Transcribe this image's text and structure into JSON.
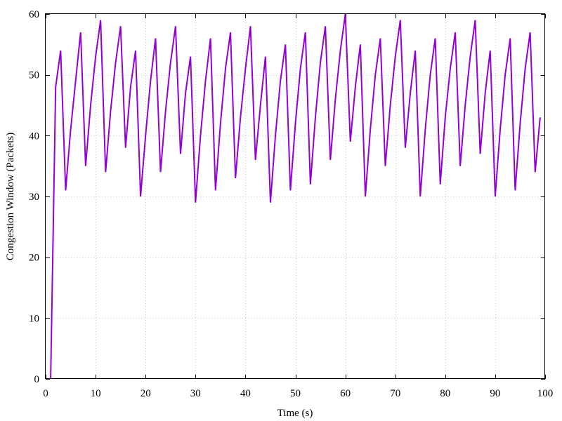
{
  "chart_data": {
    "type": "line",
    "title": "",
    "xlabel": "Time (s)",
    "ylabel": "Congestion Window (Packets)",
    "xlim": [
      0,
      100
    ],
    "ylim": [
      0,
      60
    ],
    "x_ticks": [
      0,
      10,
      20,
      30,
      40,
      50,
      60,
      70,
      80,
      90,
      100
    ],
    "y_ticks": [
      0,
      10,
      20,
      30,
      40,
      50,
      60
    ],
    "grid": true,
    "legend": "none",
    "series": [
      {
        "color": "#9400d3",
        "x": [
          1,
          2,
          3,
          4,
          5,
          6,
          7,
          8,
          9,
          10,
          11,
          12,
          13,
          14,
          15,
          16,
          17,
          18,
          19,
          20,
          21,
          22,
          23,
          24,
          25,
          26,
          27,
          28,
          29,
          30,
          31,
          32,
          33,
          34,
          35,
          36,
          37,
          38,
          39,
          40,
          41,
          42,
          43,
          44,
          45,
          46,
          47,
          48,
          49,
          50,
          51,
          52,
          53,
          54,
          55,
          56,
          57,
          58,
          59,
          60,
          61,
          62,
          63,
          64,
          65,
          66,
          67,
          68,
          69,
          70,
          71,
          72,
          73,
          74,
          75,
          76,
          77,
          78,
          79,
          80,
          81,
          82,
          83,
          84,
          85,
          86,
          87,
          88,
          89,
          90,
          91,
          92,
          93,
          94,
          95,
          96,
          97,
          98,
          99
        ],
        "y": [
          0,
          48,
          54,
          31,
          41,
          49,
          57,
          35,
          45,
          53,
          59,
          34,
          44,
          52,
          58,
          38,
          48,
          54,
          30,
          40,
          49,
          56,
          34,
          44,
          52,
          58,
          37,
          47,
          53,
          29,
          40,
          49,
          56,
          31,
          42,
          51,
          57,
          33,
          43,
          51,
          58,
          36,
          45,
          53,
          29,
          40,
          49,
          55,
          31,
          42,
          51,
          57,
          32,
          43,
          52,
          58,
          36,
          46,
          54,
          60,
          39,
          48,
          55,
          30,
          41,
          50,
          56,
          35,
          45,
          53,
          59,
          38,
          47,
          54,
          30,
          41,
          50,
          56,
          32,
          43,
          51,
          57,
          35,
          45,
          53,
          59,
          37,
          47,
          54,
          30,
          41,
          50,
          56,
          31,
          42,
          51,
          57,
          34,
          43
        ]
      }
    ]
  }
}
